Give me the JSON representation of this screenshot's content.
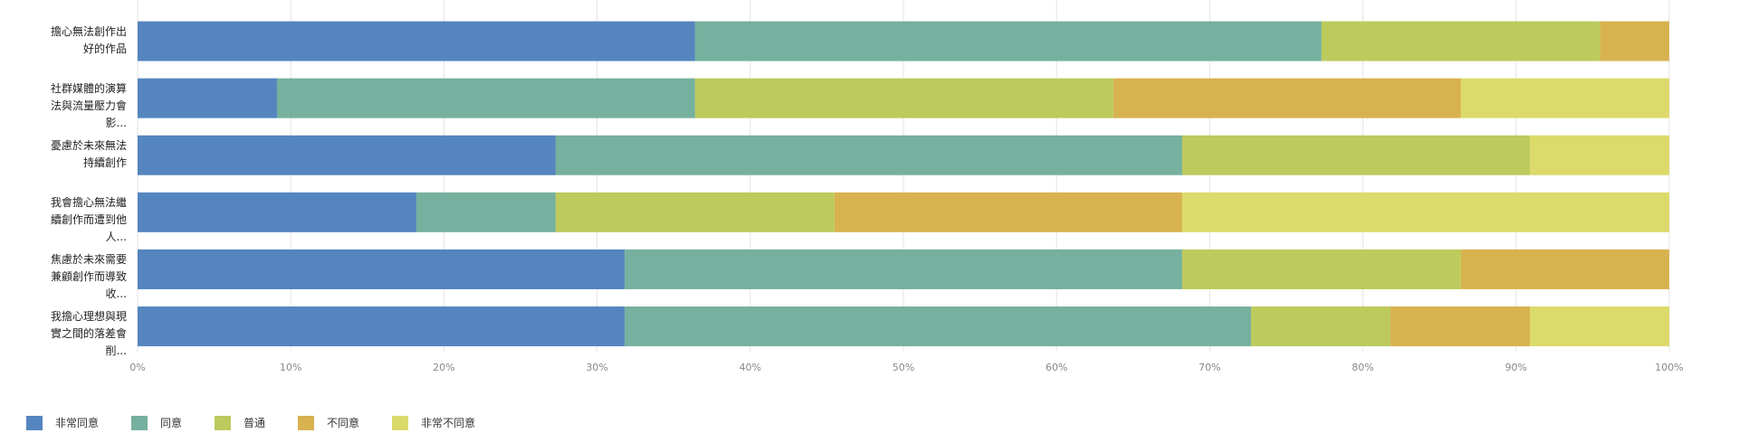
{
  "chart_data": {
    "type": "stacked-bar-horizontal-percent",
    "categories": [
      "擔心無法創作出好的作品",
      "社群媒體的演算法與流量壓力會影...",
      "憂慮於未來無法持續創作",
      "我會擔心無法繼續創作而遭到他人...",
      "焦慮於未來需要兼顧創作而導致收...",
      "我擔心理想與現實之間的落差會削..."
    ],
    "series": [
      {
        "name": "非常同意",
        "color": "#5585bf",
        "values": [
          36.4,
          9.1,
          27.3,
          18.2,
          31.8,
          31.8
        ]
      },
      {
        "name": "同意",
        "color": "#76b09f",
        "values": [
          40.9,
          27.3,
          40.9,
          9.1,
          36.4,
          40.9
        ]
      },
      {
        "name": "普通",
        "color": "#bdca5c",
        "values": [
          18.2,
          27.3,
          22.7,
          18.2,
          18.2,
          9.1
        ]
      },
      {
        "name": "不同意",
        "color": "#d8b24f",
        "values": [
          4.5,
          22.7,
          0,
          22.7,
          13.6,
          9.1
        ]
      },
      {
        "name": "非常不同意",
        "color": "#dcda6b",
        "values": [
          0,
          13.6,
          9.1,
          31.8,
          0,
          9.1
        ]
      }
    ],
    "xlim": [
      0,
      100
    ],
    "xticks": [
      {
        "value": 0,
        "label": "0%"
      },
      {
        "value": 10,
        "label": "10%"
      },
      {
        "value": 20,
        "label": "20%"
      },
      {
        "value": 30,
        "label": "30%"
      },
      {
        "value": 40,
        "label": "40%"
      },
      {
        "value": 50,
        "label": "50%"
      },
      {
        "value": 60,
        "label": "60%"
      },
      {
        "value": 70,
        "label": "70%"
      },
      {
        "value": 80,
        "label": "80%"
      },
      {
        "value": 90,
        "label": "90%"
      },
      {
        "value": 100,
        "label": "100%"
      }
    ],
    "grid": true
  }
}
